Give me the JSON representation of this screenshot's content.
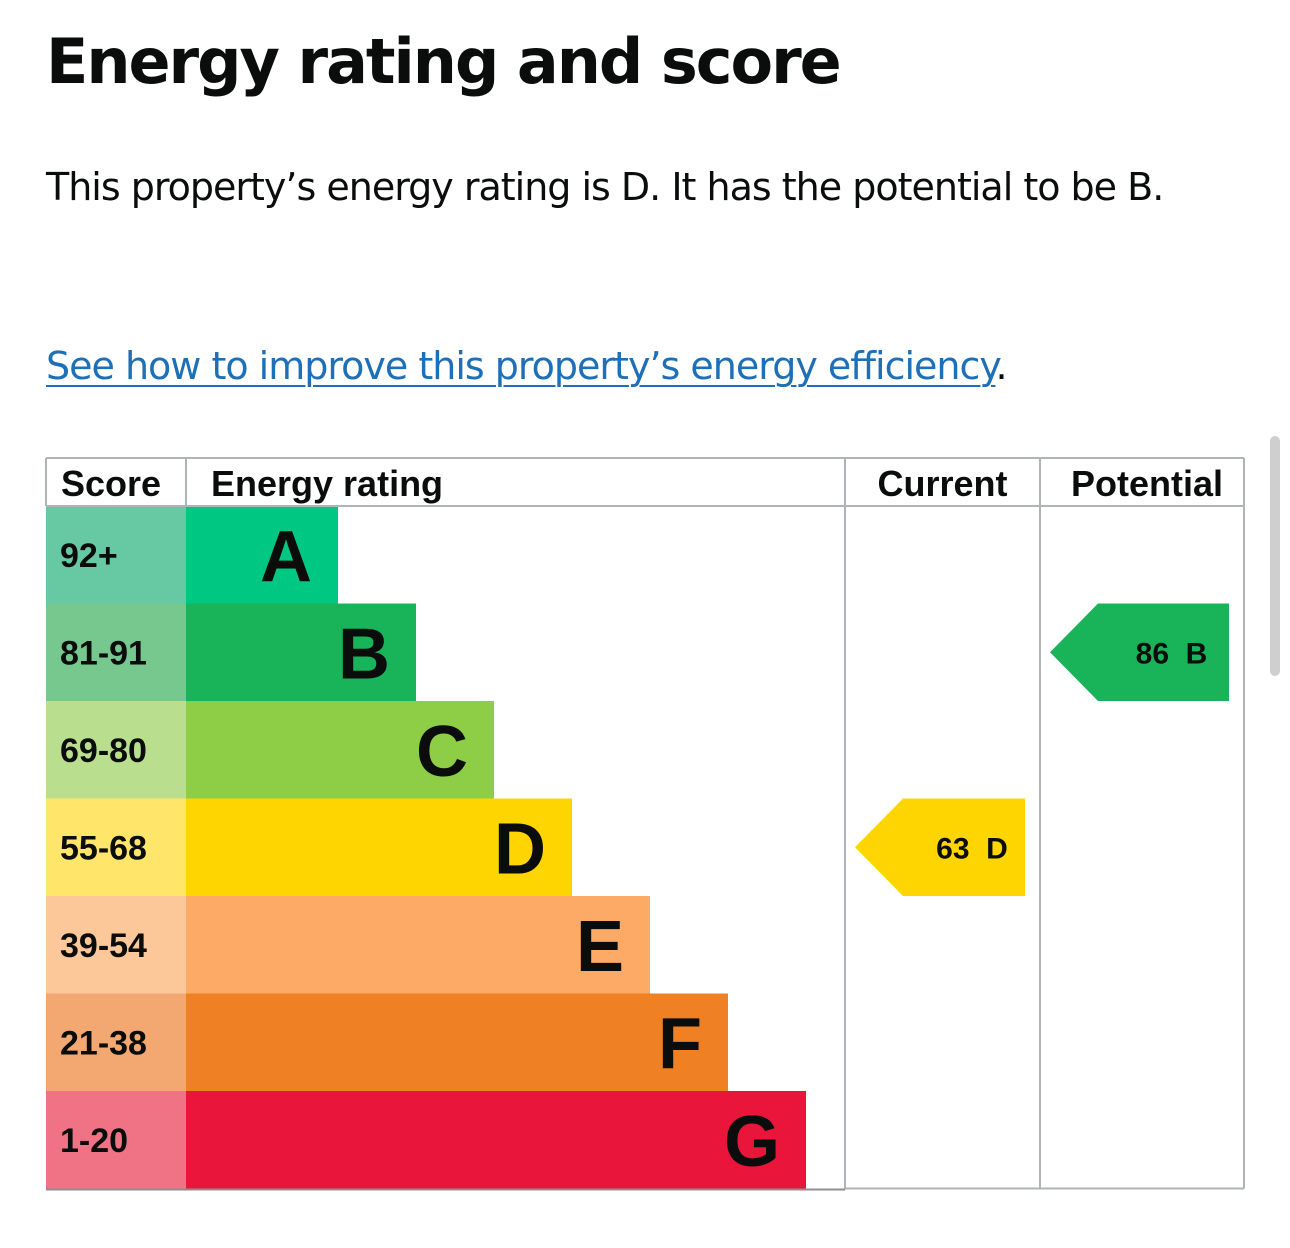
{
  "heading": "Energy rating and score",
  "summary": "This property’s energy rating is D. It has the potential to be B.",
  "improve_link": {
    "text": "See how to improve this property’s energy efficiency",
    "suffix": "."
  },
  "chart_data": {
    "type": "bar",
    "columns": {
      "score": "Score",
      "rating": "Energy rating",
      "current": "Current",
      "potential": "Potential"
    },
    "bands": [
      {
        "letter": "A",
        "range": "92+",
        "min": 92,
        "max": 100,
        "color": "#00c781",
        "score_color": "#67c8a4"
      },
      {
        "letter": "B",
        "range": "81-91",
        "min": 81,
        "max": 91,
        "color": "#19b459",
        "score_color": "#77c88e"
      },
      {
        "letter": "C",
        "range": "69-80",
        "min": 69,
        "max": 80,
        "color": "#8dce46",
        "score_color": "#b9df8e"
      },
      {
        "letter": "D",
        "range": "55-68",
        "min": 55,
        "max": 68,
        "color": "#ffd500",
        "score_color": "#ffe56a"
      },
      {
        "letter": "E",
        "range": "39-54",
        "min": 39,
        "max": 54,
        "color": "#fcaa65",
        "score_color": "#fdc899"
      },
      {
        "letter": "F",
        "range": "21-38",
        "min": 21,
        "max": 38,
        "color": "#ef8023",
        "score_color": "#f3a871"
      },
      {
        "letter": "G",
        "range": "1-20",
        "min": 1,
        "max": 20,
        "color": "#e9153b",
        "score_color": "#f07385"
      }
    ],
    "current": {
      "score": 63,
      "band": "D",
      "label": "63  D"
    },
    "potential": {
      "score": 86,
      "band": "B",
      "label": "86  B"
    }
  }
}
